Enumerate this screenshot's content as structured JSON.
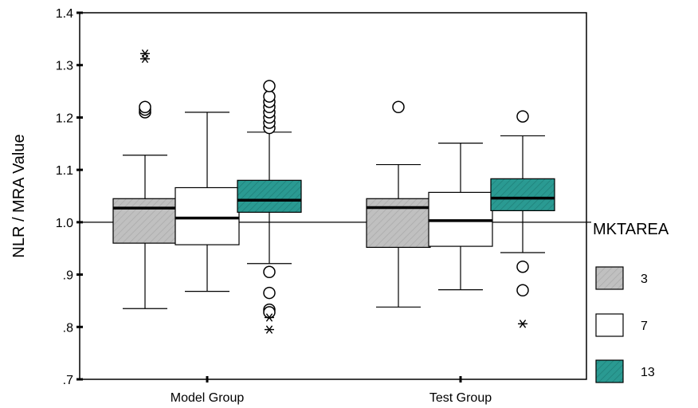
{
  "chart_data": {
    "type": "boxplot",
    "ylabel": "NLR / MRA Value",
    "ylim": [
      0.7,
      1.4
    ],
    "yticks": [
      {
        "value": 0.7,
        "label": ".7"
      },
      {
        "value": 0.8,
        "label": ".8"
      },
      {
        "value": 0.9,
        "label": ".9"
      },
      {
        "value": 1.0,
        "label": "1.0"
      },
      {
        "value": 1.1,
        "label": "1.1"
      },
      {
        "value": 1.2,
        "label": "1.2"
      },
      {
        "value": 1.3,
        "label": "1.3"
      },
      {
        "value": 1.4,
        "label": "1.4"
      }
    ],
    "reference_line": 1.0,
    "categories": [
      "Model Group",
      "Test Group"
    ],
    "legend": {
      "title": "MKTAREA",
      "placement": "right",
      "items": [
        {
          "label": "3",
          "color": "#c0c0c0",
          "pattern": "hatch"
        },
        {
          "label": "7",
          "color": "#ffffff",
          "pattern": "none"
        },
        {
          "label": "13",
          "color": "#2a9a92",
          "pattern": "hatch"
        }
      ]
    },
    "series": [
      {
        "name": "3",
        "boxes": [
          {
            "min": 0.835,
            "q1": 0.96,
            "median": 1.027,
            "q3": 1.045,
            "max": 1.128,
            "outliers": [
              1.21,
              1.215,
              1.22
            ],
            "extremes": [
              1.312,
              1.322
            ]
          },
          {
            "min": 0.838,
            "q1": 0.952,
            "median": 1.028,
            "q3": 1.045,
            "max": 1.11,
            "outliers": [
              1.22
            ],
            "extremes": []
          }
        ]
      },
      {
        "name": "7",
        "boxes": [
          {
            "min": 0.868,
            "q1": 0.957,
            "median": 1.008,
            "q3": 1.066,
            "max": 1.21,
            "outliers": [],
            "extremes": []
          },
          {
            "min": 0.871,
            "q1": 0.954,
            "median": 1.003,
            "q3": 1.057,
            "max": 1.151,
            "outliers": [],
            "extremes": []
          }
        ]
      },
      {
        "name": "13",
        "boxes": [
          {
            "min": 0.921,
            "q1": 1.019,
            "median": 1.042,
            "q3": 1.08,
            "max": 1.172,
            "outliers": [
              1.18,
              1.19,
              1.2,
              1.21,
              1.22,
              1.23,
              1.24,
              1.26,
              0.905,
              0.865,
              0.833,
              0.828
            ],
            "extremes": [
              0.818,
              0.795
            ]
          },
          {
            "min": 0.942,
            "q1": 1.022,
            "median": 1.046,
            "q3": 1.083,
            "max": 1.165,
            "outliers": [
              1.202,
              0.915,
              0.87
            ],
            "extremes": [
              0.806
            ]
          }
        ]
      }
    ]
  }
}
